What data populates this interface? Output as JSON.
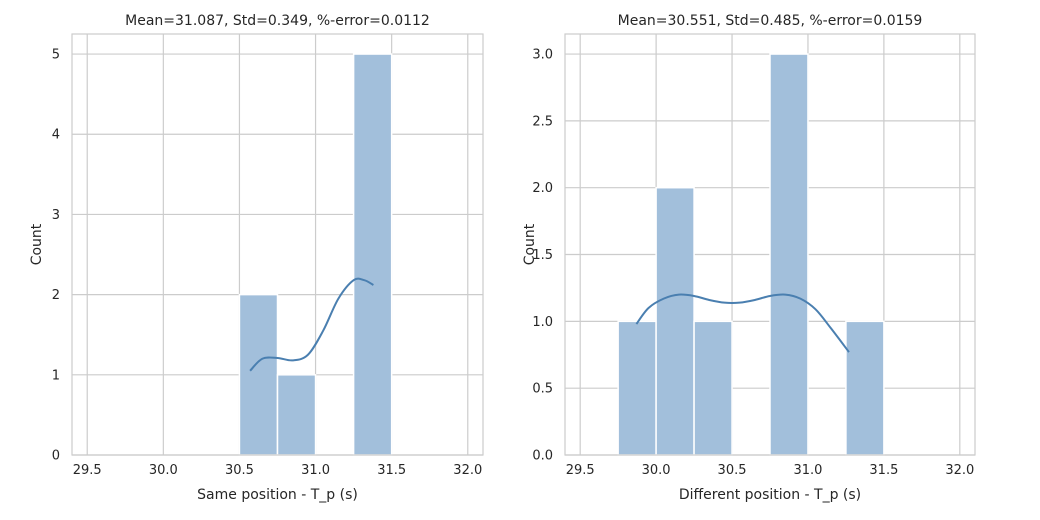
{
  "chart_data": [
    {
      "type": "bar",
      "subtype": "histogram",
      "title": "Mean=31.087, Std=0.349, %-error=0.0112",
      "xlabel": "Same position - T_p (s)",
      "ylabel": "Count",
      "xlim": [
        29.4,
        32.1
      ],
      "ylim": [
        0,
        5.25
      ],
      "xticks": [
        29.5,
        30.0,
        30.5,
        31.0,
        31.5,
        32.0
      ],
      "xtick_labels": [
        "29.5",
        "30.0",
        "30.5",
        "31.0",
        "31.5",
        "32.0"
      ],
      "yticks": [
        0,
        1,
        2,
        3,
        4,
        5
      ],
      "ytick_labels": [
        "0",
        "1",
        "2",
        "3",
        "4",
        "5"
      ],
      "grid": true,
      "bars": [
        {
          "x0": 30.5,
          "x1": 30.75,
          "value": 2
        },
        {
          "x0": 30.75,
          "x1": 31.0,
          "value": 1
        },
        {
          "x0": 31.25,
          "x1": 31.5,
          "value": 5
        }
      ],
      "kde": {
        "x": [
          30.57,
          30.65,
          30.75,
          30.85,
          30.95,
          31.05,
          31.15,
          31.25,
          31.32,
          31.38
        ],
        "y": [
          1.05,
          1.2,
          1.21,
          1.18,
          1.25,
          1.55,
          1.95,
          2.18,
          2.18,
          2.12
        ]
      },
      "colors": {
        "bar": "#a2bfdb",
        "bar_edge": "#ffffff",
        "kde": "#4a7fb0",
        "grid": "#cccccc",
        "spine": "#cccccc"
      }
    },
    {
      "type": "bar",
      "subtype": "histogram",
      "title": "Mean=30.551, Std=0.485, %-error=0.0159",
      "xlabel": "Different position - T_p (s)",
      "ylabel": "Count",
      "xlim": [
        29.4,
        32.1
      ],
      "ylim": [
        0,
        3.15
      ],
      "xticks": [
        29.5,
        30.0,
        30.5,
        31.0,
        31.5,
        32.0
      ],
      "xtick_labels": [
        "29.5",
        "30.0",
        "30.5",
        "31.0",
        "31.5",
        "32.0"
      ],
      "yticks": [
        0,
        0.5,
        1.0,
        1.5,
        2.0,
        2.5,
        3.0
      ],
      "ytick_labels": [
        "0.0",
        "0.5",
        "1.0",
        "1.5",
        "2.0",
        "2.5",
        "3.0"
      ],
      "grid": true,
      "bars": [
        {
          "x0": 29.75,
          "x1": 30.0,
          "value": 1
        },
        {
          "x0": 30.0,
          "x1": 30.25,
          "value": 2
        },
        {
          "x0": 30.25,
          "x1": 30.5,
          "value": 1
        },
        {
          "x0": 30.75,
          "x1": 31.0,
          "value": 3
        },
        {
          "x0": 31.25,
          "x1": 31.5,
          "value": 1
        }
      ],
      "kde": {
        "x": [
          29.87,
          29.95,
          30.05,
          30.15,
          30.25,
          30.35,
          30.45,
          30.55,
          30.65,
          30.75,
          30.85,
          30.95,
          31.05,
          31.15,
          31.27
        ],
        "y": [
          0.98,
          1.1,
          1.17,
          1.2,
          1.19,
          1.16,
          1.14,
          1.14,
          1.16,
          1.19,
          1.2,
          1.17,
          1.09,
          0.95,
          0.77
        ]
      },
      "colors": {
        "bar": "#a2bfdb",
        "bar_edge": "#ffffff",
        "kde": "#4a7fb0",
        "grid": "#cccccc",
        "spine": "#cccccc"
      }
    }
  ]
}
